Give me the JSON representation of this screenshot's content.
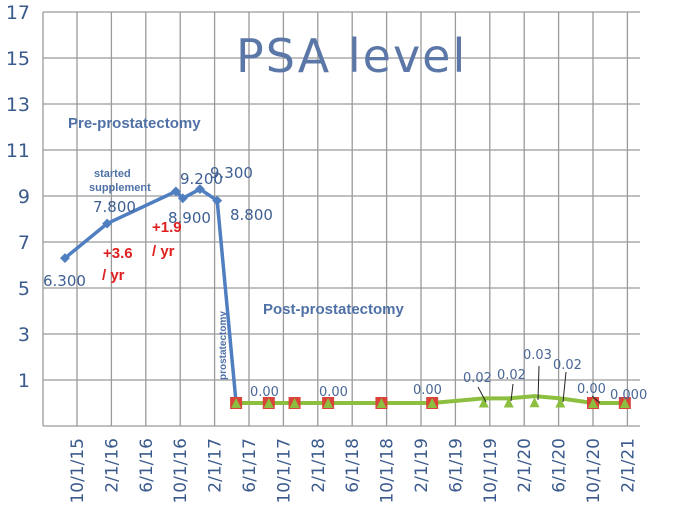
{
  "chart_data": {
    "type": "line",
    "title": "PSA level",
    "xlabel": "",
    "ylabel": "",
    "ylim": [
      -1,
      17
    ],
    "yticks": [
      1,
      3,
      5,
      7,
      9,
      11,
      13,
      15,
      17
    ],
    "x_unit": "months since 10/1/15",
    "xlim": [
      -4,
      65.5
    ],
    "xtick_labels": [
      "10/1/15",
      "2/1/16",
      "6/1/16",
      "10/1/16",
      "2/1/17",
      "6/1/17",
      "10/1/17",
      "2/1/18",
      "6/1/18",
      "10/1/18",
      "2/1/19",
      "6/1/19",
      "10/1/19",
      "2/1/20",
      "6/1/20",
      "10/1/20",
      "2/1/21"
    ],
    "grid": true,
    "series": [
      {
        "name": "Pre-prostatectomy",
        "color": "#4f7fc0",
        "points": [
          [
            -1.4,
            6.3
          ],
          [
            3.5,
            7.8
          ],
          [
            11.5,
            9.2
          ],
          [
            12.3,
            8.9
          ],
          [
            14.3,
            9.3
          ],
          [
            16.3,
            8.8
          ],
          [
            18.5,
            0
          ]
        ]
      },
      {
        "name": "Post-prostatectomy",
        "color": "#8cbf3f",
        "marker_color": "#d9433a",
        "points": [
          [
            18.5,
            0
          ],
          [
            22.3,
            0
          ],
          [
            25.3,
            0
          ],
          [
            29.2,
            0
          ],
          [
            35.4,
            0
          ],
          [
            41.3,
            0
          ],
          [
            47.3,
            0.02
          ],
          [
            50.2,
            0.02
          ],
          [
            53.2,
            0.03
          ],
          [
            56.2,
            0.02
          ],
          [
            60,
            0
          ],
          [
            63.7,
            0
          ]
        ]
      }
    ],
    "data_labels": [
      "6.300",
      "7.800",
      "9.200",
      "8.900",
      "9.300",
      "8.800",
      "0.00",
      "0.00",
      "0.00",
      "0.02",
      "0.02",
      "0.03",
      "0.02",
      "0.00",
      "0.000"
    ],
    "annotations": {
      "pre": "Pre-prostatectomy",
      "post": "Post-prostatectomy",
      "started1": "started",
      "started2": "supplement",
      "rate1a": "+3.6",
      "rate1b": "/ yr",
      "rate2a": "+1.9",
      "rate2b": "/ yr",
      "surgery": "prostatectomy"
    }
  }
}
